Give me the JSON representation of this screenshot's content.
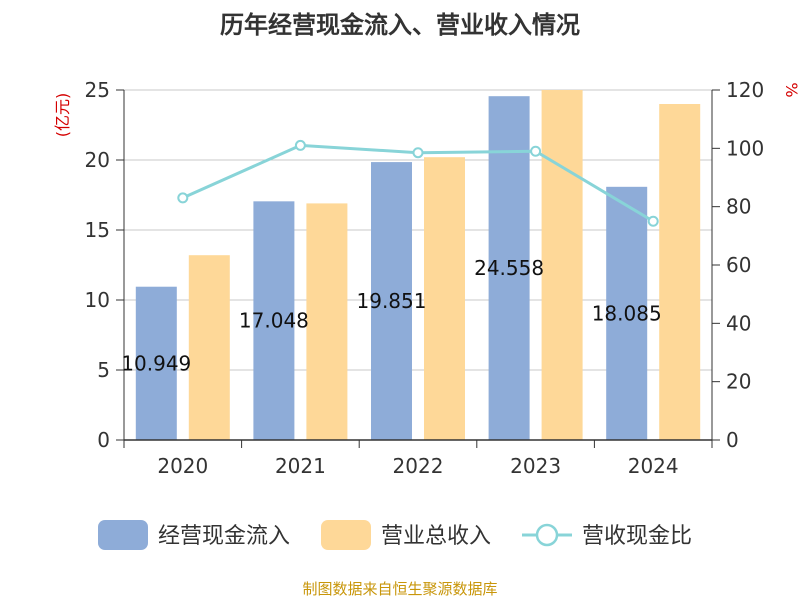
{
  "chart_data": {
    "type": "bar",
    "title": "历年经营现金流入、营业收入情况",
    "categories": [
      "2020",
      "2021",
      "2022",
      "2023",
      "2024"
    ],
    "series": [
      {
        "name": "经营现金流入",
        "axis": "left",
        "kind": "bar",
        "color": "#8eacd8",
        "values": [
          10.949,
          17.048,
          19.851,
          24.558,
          18.085
        ],
        "labels": [
          "10.949",
          "17.048",
          "19.851",
          "24.558",
          "18.085"
        ]
      },
      {
        "name": "营业总收入",
        "axis": "left",
        "kind": "bar",
        "color": "#fed898",
        "values": [
          13.2,
          16.9,
          20.2,
          25.0,
          24.0
        ]
      },
      {
        "name": "营收现金比",
        "axis": "right",
        "kind": "line",
        "color": "#88d4d8",
        "values": [
          83,
          101,
          98.5,
          99,
          75
        ]
      }
    ],
    "y_left": {
      "label": "(亿元)",
      "min": 0,
      "max": 25,
      "ticks": [
        0,
        5,
        10,
        15,
        20,
        25
      ]
    },
    "y_right": {
      "label": "%",
      "min": 0,
      "max": 120,
      "ticks": [
        0,
        20,
        40,
        60,
        80,
        100,
        120
      ]
    },
    "grid": true,
    "legend_position": "bottom"
  },
  "source_note": "制图数据来自恒生聚源数据库"
}
